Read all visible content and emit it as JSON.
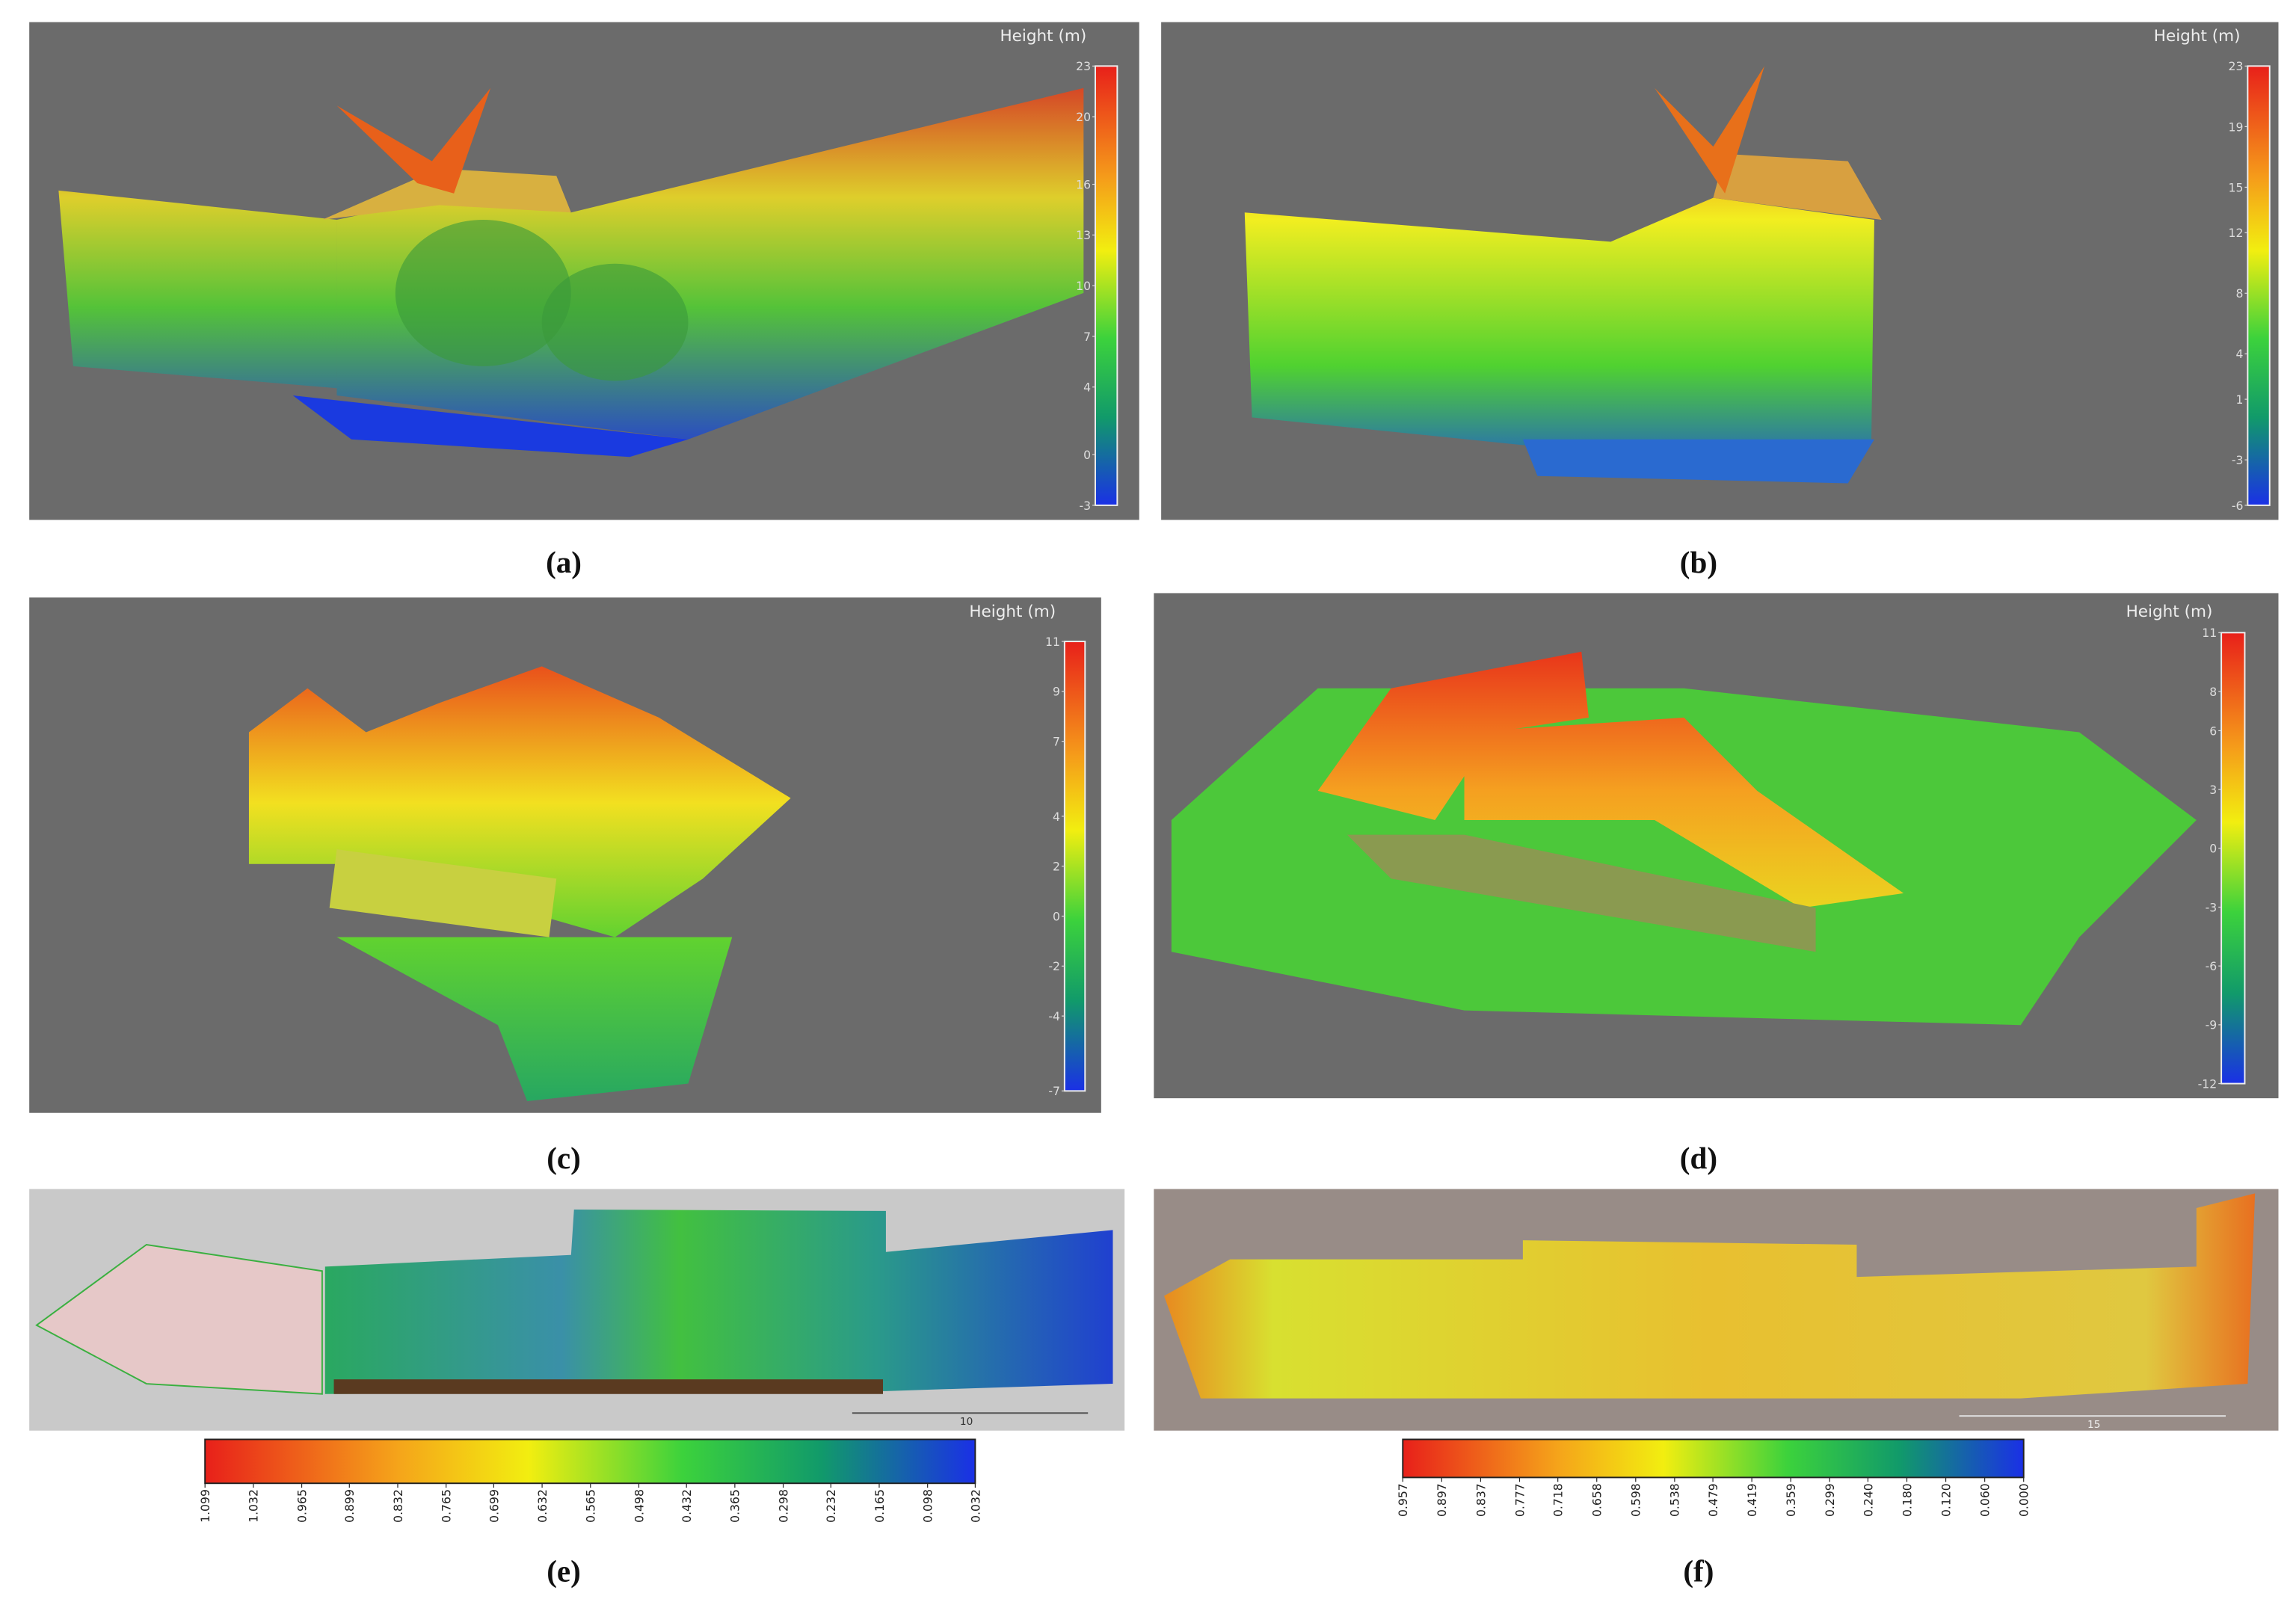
{
  "panels": [
    {
      "label": "(a)",
      "colorbar": {
        "title": "Height (m)",
        "range": [
          23,
          -3
        ],
        "ticks": [
          23,
          20,
          16,
          13,
          10,
          7,
          4,
          0,
          -3
        ]
      }
    },
    {
      "label": "(b)",
      "colorbar": {
        "title": "Height (m)",
        "range": [
          23,
          -6
        ],
        "ticks": [
          23,
          19,
          15,
          12,
          8,
          4,
          1,
          -3,
          -6
        ]
      }
    },
    {
      "label": "(c)",
      "colorbar": {
        "title": "Height (m)",
        "range": [
          11,
          -7
        ],
        "ticks": [
          11,
          9,
          7,
          4,
          2,
          0,
          -2,
          -4,
          -7
        ]
      }
    },
    {
      "label": "(d)",
      "colorbar": {
        "title": "Height (m)",
        "range": [
          11,
          -12
        ],
        "ticks": [
          11,
          8,
          6,
          3,
          0,
          -3,
          -6,
          -9,
          -12
        ]
      }
    },
    {
      "label": "(e)",
      "scale_bar": "10",
      "colorbar": {
        "range": [
          1.099,
          0.032
        ],
        "ticks": [
          1.099,
          1.032,
          0.965,
          0.899,
          0.832,
          0.765,
          0.699,
          0.632,
          0.565,
          0.498,
          0.432,
          0.365,
          0.298,
          0.232,
          0.165,
          0.098,
          0.032
        ]
      }
    },
    {
      "label": "(f)",
      "scale_bar": "15",
      "colorbar": {
        "range": [
          0.957,
          0
        ],
        "ticks": [
          0.957,
          0.897,
          0.837,
          0.777,
          0.718,
          0.658,
          0.598,
          0.538,
          0.479,
          0.419,
          0.359,
          0.299,
          {
            "value": 0.24,
            "label": "0.240"
          },
          {
            "value": 0.18,
            "label": "0.180"
          },
          {
            "value": 0.12,
            "label": "0.120"
          },
          {
            "value": 0.06,
            "label": "0.060"
          },
          {
            "value": 0,
            "label": "0.000"
          }
        ]
      }
    }
  ]
}
